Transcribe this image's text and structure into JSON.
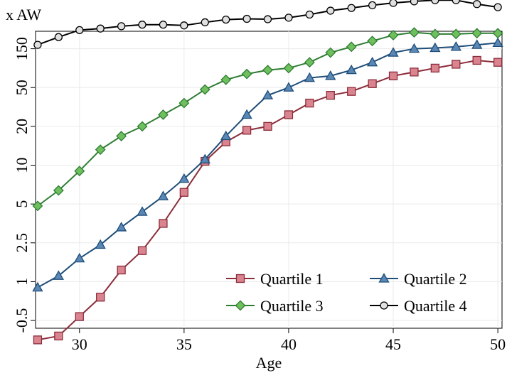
{
  "chart_data": {
    "type": "line",
    "ylabel": "x AW",
    "xlabel": "Age",
    "x": [
      28,
      29,
      30,
      31,
      32,
      33,
      34,
      35,
      36,
      37,
      38,
      39,
      40,
      41,
      42,
      43,
      44,
      45,
      46,
      47,
      48,
      49,
      50
    ],
    "xticks": [
      "30",
      "35",
      "40",
      "45",
      "50"
    ],
    "xtick_values": [
      30,
      35,
      40,
      45,
      50
    ],
    "xlim": [
      27.9,
      50.2
    ],
    "yscale": "log-like (transformed)",
    "yticks": [
      "-0.5",
      "1",
      "2.5",
      "5",
      "10",
      "20",
      "50",
      "150"
    ],
    "ytick_positions": [
      0.0,
      1.0,
      2.0,
      3.0,
      4.0,
      5.0,
      6.0,
      7.0
    ],
    "ylim": [
      -0.2,
      7.45
    ],
    "grid": true,
    "legend_position": "bottom-right",
    "series": [
      {
        "name": "Quartile 1",
        "color": "#8c2d3b",
        "fill": "#d9848f",
        "marker": "square",
        "values": [
          -0.5,
          -0.4,
          0.1,
          0.6,
          1.3,
          1.8,
          2.5,
          3.3,
          4.1,
          4.6,
          4.9,
          5.0,
          5.3,
          5.6,
          5.8,
          5.9,
          6.1,
          6.3,
          6.4,
          6.5,
          6.6,
          6.7,
          6.65
        ]
      },
      {
        "name": "Quartile 2",
        "color": "#1f4e79",
        "fill": "#5b87b5",
        "marker": "triangle",
        "values": [
          0.85,
          1.15,
          1.6,
          1.95,
          2.4,
          2.8,
          3.2,
          3.65,
          4.15,
          4.75,
          5.3,
          5.8,
          6.0,
          6.25,
          6.3,
          6.45,
          6.65,
          6.9,
          7.0,
          7.02,
          7.05,
          7.1,
          7.15
        ]
      },
      {
        "name": "Quartile 3",
        "color": "#2e7d32",
        "fill": "#6fbf5f",
        "marker": "diamond",
        "values": [
          2.95,
          3.35,
          3.85,
          4.4,
          4.75,
          5.0,
          5.3,
          5.6,
          5.95,
          6.2,
          6.35,
          6.45,
          6.5,
          6.65,
          6.9,
          7.05,
          7.2,
          7.35,
          7.42,
          7.38,
          7.38,
          7.4,
          7.4
        ]
      },
      {
        "name": "Quartile 4",
        "color": "#000000",
        "fill": "#e0e0e0",
        "marker": "circle",
        "values": [
          7.1,
          7.3,
          7.48,
          7.52,
          7.58,
          7.62,
          7.62,
          7.6,
          7.68,
          7.75,
          7.77,
          7.76,
          7.8,
          7.88,
          7.98,
          8.05,
          8.12,
          8.18,
          8.22,
          8.25,
          8.25,
          8.15,
          8.07
        ]
      }
    ]
  }
}
